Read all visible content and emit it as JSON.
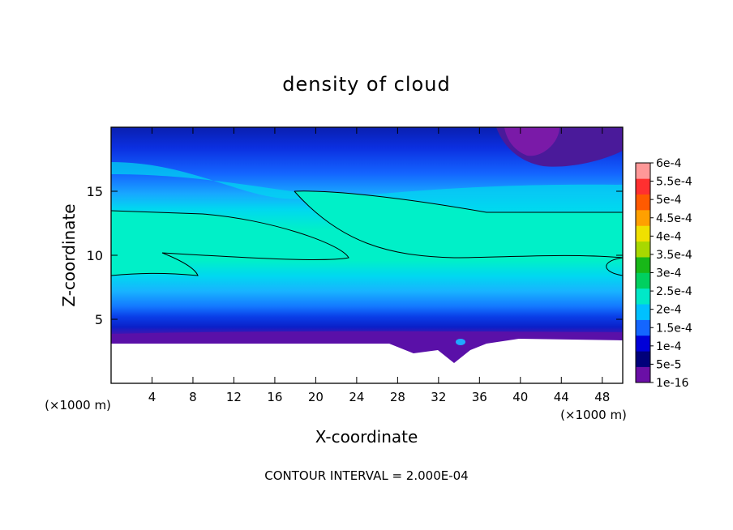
{
  "chart_data": {
    "type": "heatmap",
    "title": "density of cloud",
    "xlabel": "X-coordinate",
    "ylabel": "Z-coordinate",
    "x_unit_left": "(×1000 m)",
    "x_unit_right": "(×1000 m)",
    "xlim": [
      0,
      50
    ],
    "ylim": [
      0,
      20
    ],
    "x_ticks": [
      4,
      8,
      12,
      16,
      20,
      24,
      28,
      32,
      36,
      40,
      44,
      48
    ],
    "y_ticks": [
      5,
      10,
      15
    ],
    "footer": "CONTOUR INTERVAL = 2.000E-04",
    "contour_interval": 0.0002,
    "colorbar": {
      "labels": [
        "1e-16",
        "5e-5",
        "1e-4",
        "1.5e-4",
        "2e-4",
        "2.5e-4",
        "3e-4",
        "3.5e-4",
        "4e-4",
        "4.5e-4",
        "5e-4",
        "5.5e-4",
        "6e-4"
      ],
      "colors": [
        "#6a0fa6",
        "#00007a",
        "#0000d8",
        "#1466ff",
        "#00c0ff",
        "#00e8c8",
        "#00d060",
        "#18b818",
        "#a8d800",
        "#f0e000",
        "#ffa000",
        "#ff5a00",
        "#ff3030",
        "#ff9898"
      ]
    },
    "ground_top_km": 3.3,
    "field_bands": [
      {
        "z0": 0.0,
        "z1": 3.3,
        "value": "no data (terrain)"
      },
      {
        "z0": 3.3,
        "z1": 4.2,
        "value": "1e-16 to 5e-5"
      },
      {
        "z0": 4.2,
        "z1": 5.5,
        "value": "5e-5 to 1e-4"
      },
      {
        "z0": 5.5,
        "z1": 8.5,
        "value": "1e-4 to 2e-4"
      },
      {
        "z0": 8.5,
        "z1": 15.0,
        "value": "2e-4 to 2.5e-4"
      },
      {
        "z0": 15.0,
        "z1": 17.5,
        "value": "1e-4 to 2e-4"
      },
      {
        "z0": 17.5,
        "z1": 20.0,
        "value": "5e-5 to 1e-4"
      }
    ]
  }
}
